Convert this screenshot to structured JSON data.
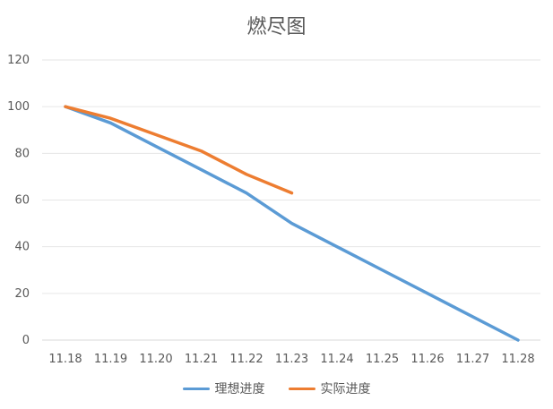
{
  "chart_data": {
    "type": "line",
    "title": "燃尽图",
    "categories": [
      "11.18",
      "11.19",
      "11.20",
      "11.21",
      "11.22",
      "11.23",
      "11.24",
      "11.25",
      "11.26",
      "11.27",
      "11.28"
    ],
    "ylim": [
      0,
      120
    ],
    "yticks": [
      0,
      20,
      40,
      60,
      80,
      100,
      120
    ],
    "grid": true,
    "legend_position": "bottom",
    "series": [
      {
        "name": "理想进度",
        "color": "#5B9BD5",
        "values": [
          100,
          93,
          83,
          73,
          63,
          50,
          40,
          30,
          20,
          10,
          0
        ]
      },
      {
        "name": "实际进度",
        "color": "#ED7D31",
        "values": [
          100,
          95,
          88,
          81,
          71,
          63,
          null,
          null,
          null,
          null,
          null
        ]
      }
    ]
  }
}
